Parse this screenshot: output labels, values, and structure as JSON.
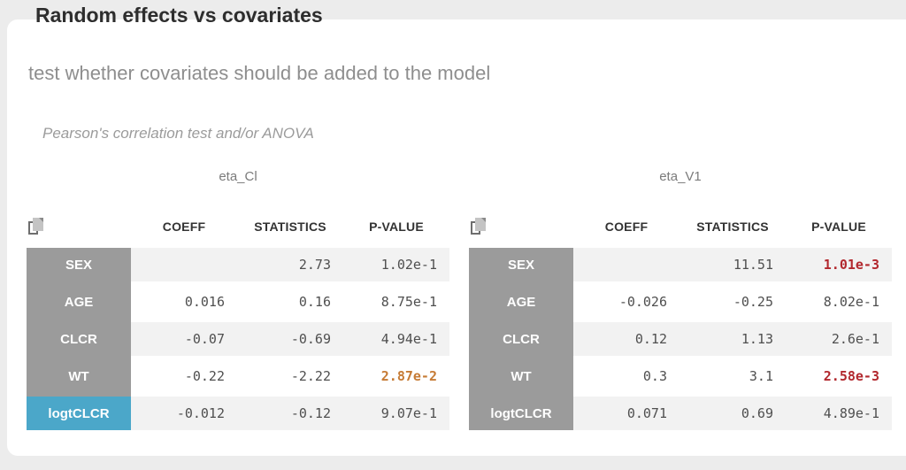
{
  "page": {
    "title": "Random effects vs covariates",
    "subtitle": "test whether covariates should be added to the model",
    "method_note": "Pearson's correlation test and/or ANOVA"
  },
  "colors": {
    "page_background": "#ececec",
    "card_background": "#ffffff",
    "label_gray": "#9b9b9b",
    "accent_blue": "#4ba7c9",
    "row_stripe": "#f2f2f2",
    "significant_orange": "#c67b35",
    "significant_red": "#b2282e"
  },
  "icons": {
    "copy": "copy-pages-icon"
  },
  "tables": [
    {
      "title": "eta_Cl",
      "columns": [
        "COEFF",
        "STATISTICS",
        "P-VALUE"
      ],
      "rows": [
        {
          "label": "SEX",
          "highlight": "gray",
          "coeff": "",
          "statistics": "2.73",
          "p_value": "1.02e-1",
          "significance": "none"
        },
        {
          "label": "AGE",
          "highlight": "gray",
          "coeff": "0.016",
          "statistics": "0.16",
          "p_value": "8.75e-1",
          "significance": "none"
        },
        {
          "label": "CLCR",
          "highlight": "gray",
          "coeff": "-0.07",
          "statistics": "-0.69",
          "p_value": "4.94e-1",
          "significance": "none"
        },
        {
          "label": "WT",
          "highlight": "gray",
          "coeff": "-0.22",
          "statistics": "-2.22",
          "p_value": "2.87e-2",
          "significance": "warning"
        },
        {
          "label": "logtCLCR",
          "highlight": "blue",
          "coeff": "-0.012",
          "statistics": "-0.12",
          "p_value": "9.07e-1",
          "significance": "none"
        }
      ]
    },
    {
      "title": "eta_V1",
      "columns": [
        "COEFF",
        "STATISTICS",
        "P-VALUE"
      ],
      "rows": [
        {
          "label": "SEX",
          "highlight": "gray",
          "coeff": "",
          "statistics": "11.51",
          "p_value": "1.01e-3",
          "significance": "danger"
        },
        {
          "label": "AGE",
          "highlight": "gray",
          "coeff": "-0.026",
          "statistics": "-0.25",
          "p_value": "8.02e-1",
          "significance": "none"
        },
        {
          "label": "CLCR",
          "highlight": "gray",
          "coeff": "0.12",
          "statistics": "1.13",
          "p_value": "2.6e-1",
          "significance": "none"
        },
        {
          "label": "WT",
          "highlight": "gray",
          "coeff": "0.3",
          "statistics": "3.1",
          "p_value": "2.58e-3",
          "significance": "danger"
        },
        {
          "label": "logtCLCR",
          "highlight": "gray",
          "coeff": "0.071",
          "statistics": "0.69",
          "p_value": "4.89e-1",
          "significance": "none"
        }
      ]
    }
  ]
}
